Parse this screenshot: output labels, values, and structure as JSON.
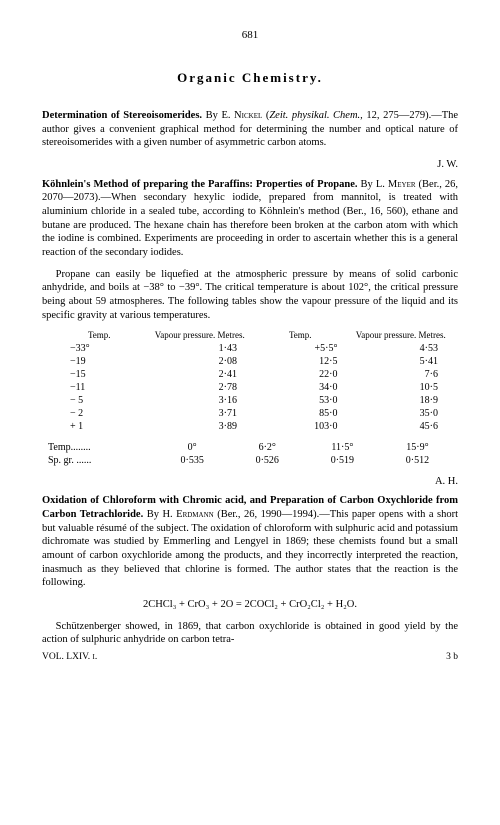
{
  "page_number": "681",
  "section_title": "Organic Chemistry.",
  "entry1": {
    "title": "Determination of Stereoisomerides.",
    "by": "By",
    "author": "E. Nickel",
    "citation_open": "(",
    "journal": "Zeit. physikal. Chem.,",
    "ref": "12, 275—279).—The author gives a convenient graphical method for determining the number and optical nature of stereoisomerides with a given number of asymmetric carbon atoms.",
    "signature": "J. W."
  },
  "entry2": {
    "title": "Köhnlein's Method of preparing the Paraffins: Properties of Propane.",
    "by": "By",
    "author": "L. Meyer",
    "citation": "(Ber., 26, 2070—2073).—When secondary hexylic iodide, prepared from mannitol, is treated with aluminium chloride in a sealed tube, according to Köhnlein's method (Ber., 16, 560), ethane and butane are produced. The hexane chain has therefore been broken at the carbon atom with which the iodine is combined. Experiments are proceeding in order to ascertain whether this is a general reaction of the secondary iodides.",
    "para2": "Propane can easily be liquefied at the atmospheric pressure by means of solid carbonic anhydride, and boils at −38° to −39°. The critical temperature is about 102°, the critical pressure being about 59 atmospheres. The following tables show the vapour pressure of the liquid and its specific gravity at various temperatures.",
    "signature": "A. H."
  },
  "table1": {
    "head": [
      "Temp.",
      "Vapour pressure. Metres.",
      "Temp.",
      "Vapour pressure. Metres."
    ],
    "rows": [
      [
        "−33°",
        "1·43",
        "+5·5°",
        "4·53"
      ],
      [
        "−19",
        "2·08",
        "12·5",
        "5·41"
      ],
      [
        "−15",
        "2·41",
        "22·0",
        "7·6"
      ],
      [
        "−11",
        "2·78",
        "34·0",
        "10·5"
      ],
      [
        "− 5",
        "3·16",
        "53·0",
        "18·9"
      ],
      [
        "− 2",
        "3·71",
        "85·0",
        "35·0"
      ],
      [
        "+ 1",
        "3·89",
        "103·0",
        "45·6"
      ]
    ]
  },
  "table2": {
    "rows": [
      [
        "Temp........",
        "0°",
        "6·2°",
        "11·5°",
        "15·9°"
      ],
      [
        "Sp. gr. ......",
        "0·535",
        "0·526",
        "0·519",
        "0·512"
      ]
    ]
  },
  "entry3": {
    "title": "Oxidation of Chloroform with Chromic acid, and Preparation of Carbon Oxychloride from Carbon Tetrachloride.",
    "by": "By",
    "author": "H. Erdmann",
    "citation": "(Ber., 26, 1990—1994).—This paper opens with a short but valuable résumé of the subject. The oxidation of chloroform with sulphuric acid and potassium dichromate was studied by Emmerling and Lengyel in 1869; these chemists found but a small amount of carbon oxychloride among the products, and they incorrectly interpreted the reaction, inasmuch as they believed that chlorine is formed. The author states that the reaction is the following.",
    "formula": "2CHCl₃ + CrO₃ + 2O = 2COCl₂ + CrO₂Cl₂ + H₂O.",
    "para2": "Schützenberger showed, in 1869, that carbon oxychloride is obtained in good yield by the action of sulphuric anhydride on carbon tetra-"
  },
  "footer": {
    "vol": "VOL. LXIV. i.",
    "sig": "3 b"
  }
}
